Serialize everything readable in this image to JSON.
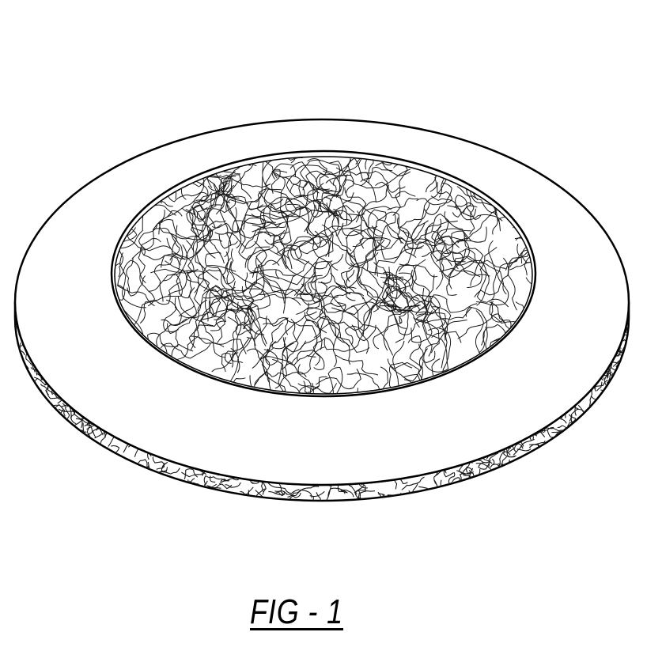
{
  "figure": {
    "label": "FIG - 1",
    "colors": {
      "line": "#000000",
      "fill": "#ffffff",
      "fiber": "#1a1a1a"
    }
  }
}
